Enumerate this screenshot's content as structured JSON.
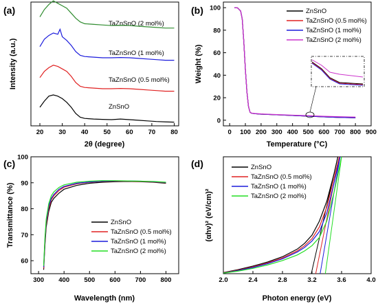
{
  "chart_data": [
    {
      "panel_label": "(a)",
      "type": "line",
      "xlabel": "2θ (degree)",
      "ylabel": "Intensity (a.u.)",
      "xlim": [
        16,
        82
      ],
      "ylim": [
        0,
        10
      ],
      "xticks": [
        20,
        30,
        40,
        50,
        60,
        70,
        80
      ],
      "yticks_shown": false,
      "series": [
        {
          "name": "ZnSnO",
          "color": "#000000",
          "offset": 0.2,
          "x": [
            20,
            22,
            24,
            26,
            28,
            30,
            32,
            34,
            36,
            38,
            40,
            44,
            48,
            52,
            56,
            60,
            64,
            68,
            72,
            76,
            80
          ],
          "y": [
            1.3,
            1.8,
            2.2,
            2.3,
            2.2,
            2.0,
            1.7,
            1.3,
            0.8,
            0.5,
            0.4,
            0.35,
            0.32,
            0.3,
            0.35,
            0.3,
            0.25,
            0.2,
            0.15,
            0.12,
            0.1
          ]
        },
        {
          "name": "TaZnSnO (0.5 mol%)",
          "color": "#e02020",
          "offset": 2.7,
          "x": [
            20,
            22,
            24,
            26,
            28,
            30,
            32,
            34,
            36,
            38,
            40,
            44,
            48,
            52,
            56,
            60,
            64,
            68,
            72,
            76,
            80
          ],
          "y": [
            1.2,
            1.7,
            2.0,
            2.2,
            2.1,
            1.9,
            1.7,
            1.3,
            0.8,
            0.5,
            0.4,
            0.35,
            0.3,
            0.3,
            0.32,
            0.3,
            0.25,
            0.2,
            0.15,
            0.1,
            0.1
          ]
        },
        {
          "name": "TaZnSnO (1 mol%)",
          "color": "#1a1adc",
          "offset": 5.2,
          "x": [
            20,
            22,
            24,
            26,
            28,
            29,
            30,
            32,
            34,
            36,
            38,
            40,
            44,
            48,
            52,
            56,
            60,
            64,
            68,
            72,
            76,
            80
          ],
          "y": [
            1.2,
            1.8,
            2.1,
            2.3,
            2.2,
            2.6,
            2.0,
            1.7,
            1.3,
            0.8,
            0.5,
            0.4,
            0.35,
            0.3,
            0.3,
            0.32,
            0.3,
            0.25,
            0.2,
            0.15,
            0.1,
            0.1
          ]
        },
        {
          "name": "TaZnSnO (2 mol%)",
          "color": "#2e8b2e",
          "offset": 7.8,
          "x": [
            20,
            22,
            24,
            26,
            28,
            30,
            32,
            34,
            36,
            38,
            40,
            44,
            48,
            52,
            56,
            60,
            64,
            68,
            72,
            76,
            80
          ],
          "y": [
            1.0,
            1.6,
            2.0,
            2.3,
            2.1,
            1.9,
            1.7,
            1.3,
            0.9,
            0.6,
            0.45,
            0.4,
            0.35,
            0.3,
            0.32,
            0.3,
            0.25,
            0.2,
            0.15,
            0.1,
            0.1
          ]
        }
      ],
      "labels": [
        "TaZnSnO (2 mol%)",
        "TaZnSnO (1 mol%)",
        "TaZnSnO (0.5 mol%)",
        "ZnSnO"
      ]
    },
    {
      "panel_label": "(b)",
      "type": "line",
      "xlabel": "Temperature (°C)",
      "ylabel": "Weight (%)",
      "xlim": [
        -40,
        900
      ],
      "ylim": [
        -5,
        105
      ],
      "xticks": [
        0,
        100,
        200,
        300,
        400,
        500,
        600,
        700,
        800,
        900
      ],
      "yticks": [
        0,
        20,
        40,
        60,
        80,
        100
      ],
      "legend_position": "top-right",
      "series": [
        {
          "name": "ZnSnO",
          "color": "#000000",
          "x": [
            30,
            50,
            70,
            80,
            90,
            100,
            110,
            120,
            130,
            140,
            160,
            200,
            300,
            400,
            500,
            600,
            700,
            800
          ],
          "y": [
            100,
            99.8,
            97,
            90,
            70,
            45,
            25,
            12,
            7,
            6.2,
            5.8,
            5.4,
            4.8,
            4.2,
            3.6,
            3.0,
            2.5,
            2.2
          ]
        },
        {
          "name": "TaZnSnO (0.5 mol%)",
          "color": "#e02020",
          "x": [
            30,
            50,
            70,
            80,
            90,
            100,
            110,
            120,
            130,
            140,
            160,
            200,
            300,
            400,
            500,
            600,
            700,
            800
          ],
          "y": [
            100,
            99.8,
            97,
            90,
            70,
            45,
            25,
            12,
            7,
            6.2,
            5.8,
            5.4,
            4.8,
            4.2,
            3.6,
            3.0,
            2.5,
            2.2
          ]
        },
        {
          "name": "TaZnSnO (1 mol%)",
          "color": "#1a1adc",
          "x": [
            30,
            50,
            70,
            80,
            90,
            100,
            110,
            120,
            130,
            140,
            160,
            200,
            300,
            400,
            500,
            600,
            700,
            800
          ],
          "y": [
            100,
            99.8,
            97,
            90,
            70,
            45,
            25,
            12,
            7,
            6.2,
            5.8,
            5.4,
            4.8,
            4.2,
            3.6,
            3.0,
            2.5,
            2.2
          ]
        },
        {
          "name": "TaZnSnO (2 mol%)",
          "color": "#cc33cc",
          "x": [
            30,
            50,
            70,
            80,
            90,
            100,
            110,
            120,
            130,
            140,
            160,
            200,
            300,
            400,
            500,
            600,
            700,
            800
          ],
          "y": [
            100,
            99.8,
            97,
            90,
            70,
            45,
            25,
            12,
            7,
            6.3,
            6.0,
            5.6,
            5.0,
            4.5,
            4.0,
            3.5,
            3.1,
            2.8
          ]
        }
      ],
      "inset": "zoomed view near 500 °C (dashed-dot box) showing the 2 mol% curve slightly higher"
    },
    {
      "panel_label": "(c)",
      "type": "line",
      "xlabel": "Wavelength (nm)",
      "ylabel": "Transmittance (%)",
      "xlim": [
        270,
        850
      ],
      "ylim": [
        55,
        100
      ],
      "xticks": [
        300,
        400,
        500,
        600,
        700,
        800
      ],
      "yticks": [
        60,
        70,
        80,
        90,
        100
      ],
      "legend_position": "bottom-right",
      "series": [
        {
          "name": "ZnSnO",
          "color": "#000000",
          "x": [
            320,
            325,
            330,
            340,
            350,
            360,
            380,
            400,
            450,
            500,
            550,
            600,
            650,
            700,
            750,
            800
          ],
          "y": [
            56.5,
            66,
            73,
            79,
            82.5,
            84,
            86,
            87.5,
            89,
            89.8,
            90.2,
            90.4,
            90.5,
            90.4,
            90.2,
            89.8
          ]
        },
        {
          "name": "TaZnSnO (0.5 mol%)",
          "color": "#e02020",
          "x": [
            320,
            325,
            330,
            340,
            350,
            360,
            380,
            400,
            450,
            500,
            550,
            600,
            650,
            700,
            750,
            800
          ],
          "y": [
            57,
            67,
            74,
            80,
            83.5,
            85,
            87,
            88.3,
            89.6,
            90.2,
            90.5,
            90.6,
            90.6,
            90.5,
            90.3,
            90.0
          ]
        },
        {
          "name": "TaZnSnO (1 mol%)",
          "color": "#1a1adc",
          "x": [
            320,
            325,
            330,
            340,
            350,
            360,
            380,
            400,
            450,
            500,
            550,
            600,
            650,
            700,
            750,
            800
          ],
          "y": [
            57.5,
            68,
            75,
            81,
            84,
            85.5,
            87.5,
            88.6,
            89.8,
            90.3,
            90.6,
            90.7,
            90.7,
            90.6,
            90.4,
            90.1
          ]
        },
        {
          "name": "TaZnSnO (2 mol%)",
          "color": "#22dd22",
          "x": [
            320,
            325,
            330,
            340,
            350,
            360,
            380,
            400,
            450,
            500,
            550,
            600,
            650,
            700,
            750,
            800
          ],
          "y": [
            58,
            69,
            76,
            82,
            85,
            86.5,
            88.2,
            89.2,
            90.2,
            90.6,
            90.8,
            90.8,
            90.7,
            90.6,
            90.5,
            90.2
          ]
        }
      ]
    },
    {
      "panel_label": "(d)",
      "type": "line",
      "xlabel": "Photon energy (eV)",
      "ylabel": "(αhν)² (eV/cm)²",
      "xlim": [
        2.0,
        4.0
      ],
      "ylim": [
        0,
        10
      ],
      "xticks": [
        2.0,
        2.4,
        2.8,
        3.2,
        3.6,
        4.0
      ],
      "yticks_shown": false,
      "legend_position": "top-left",
      "series": [
        {
          "name": "ZnSnO",
          "color": "#000000",
          "x": [
            2.0,
            2.2,
            2.4,
            2.6,
            2.8,
            3.0,
            3.1,
            3.2,
            3.3,
            3.4,
            3.5,
            3.55
          ],
          "y": [
            0.1,
            0.35,
            0.65,
            1.0,
            1.45,
            2.1,
            2.6,
            3.3,
            4.5,
            6.2,
            8.6,
            10
          ]
        },
        {
          "name": "TaZnSnO (0.5 mol%)",
          "color": "#e02020",
          "x": [
            2.0,
            2.2,
            2.4,
            2.6,
            2.8,
            3.0,
            3.1,
            3.2,
            3.3,
            3.4,
            3.5,
            3.57
          ],
          "y": [
            0.08,
            0.3,
            0.58,
            0.92,
            1.35,
            1.95,
            2.4,
            3.0,
            4.0,
            5.7,
            8.2,
            10
          ]
        },
        {
          "name": "TaZnSnO (1 mol%)",
          "color": "#1a1adc",
          "x": [
            2.0,
            2.2,
            2.4,
            2.6,
            2.8,
            3.0,
            3.1,
            3.2,
            3.3,
            3.4,
            3.5,
            3.58
          ],
          "y": [
            0.06,
            0.27,
            0.53,
            0.86,
            1.27,
            1.85,
            2.25,
            2.8,
            3.6,
            5.2,
            7.8,
            10
          ]
        },
        {
          "name": "TaZnSnO (2 mol%)",
          "color": "#22dd22",
          "x": [
            2.0,
            2.2,
            2.4,
            2.6,
            2.8,
            3.0,
            3.1,
            3.2,
            3.3,
            3.4,
            3.5,
            3.6
          ],
          "y": [
            0.05,
            0.22,
            0.45,
            0.75,
            1.12,
            1.6,
            1.95,
            2.4,
            3.1,
            4.5,
            7.0,
            10
          ]
        }
      ],
      "tangents": [
        {
          "color": "#000000",
          "x": [
            3.19,
            3.55
          ],
          "y": [
            0,
            10
          ]
        },
        {
          "color": "#e02020",
          "x": [
            3.25,
            3.57
          ],
          "y": [
            0,
            10
          ]
        },
        {
          "color": "#1a1adc",
          "x": [
            3.31,
            3.58
          ],
          "y": [
            0,
            10
          ]
        },
        {
          "color": "#22dd22",
          "x": [
            3.38,
            3.6
          ],
          "y": [
            0,
            10
          ]
        }
      ]
    }
  ]
}
